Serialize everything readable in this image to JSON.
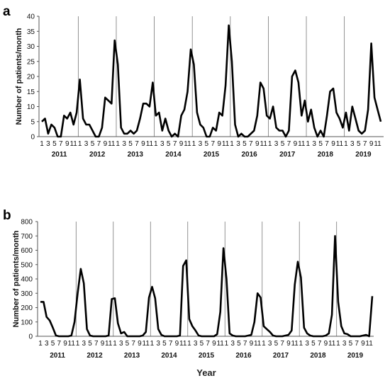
{
  "chart_data": [
    {
      "type": "line",
      "panel_label": "a",
      "ylabel": "Number of patients/month",
      "xlabel": "",
      "ylim": [
        0,
        40
      ],
      "yticks": [
        0,
        5,
        10,
        15,
        20,
        25,
        30,
        35,
        40
      ],
      "month_tick_labels": [
        "1",
        "3",
        "5",
        "7",
        "9",
        "11"
      ],
      "years": [
        "2011",
        "2012",
        "2013",
        "2014",
        "2015",
        "2016",
        "2017",
        "2018",
        "2019"
      ],
      "series": [
        {
          "values": [
            5,
            6,
            1,
            4,
            3,
            0,
            0,
            7,
            6,
            8,
            4,
            8,
            19,
            6,
            4,
            4,
            2,
            0,
            0,
            3,
            13,
            12,
            11,
            32,
            24,
            3,
            1,
            1,
            2,
            1,
            2,
            6,
            11,
            11,
            10,
            18,
            7,
            8,
            2,
            6,
            2,
            0,
            1,
            0,
            7,
            9,
            15,
            29,
            24,
            8,
            4,
            3,
            0,
            0,
            3,
            2,
            8,
            7,
            17,
            37,
            25,
            4,
            0,
            1,
            0,
            0,
            1,
            2,
            7,
            18,
            16,
            7,
            6,
            10,
            3,
            2,
            2,
            0,
            2,
            20,
            22,
            18,
            7,
            12,
            5,
            9,
            3,
            0,
            2,
            0,
            7,
            15,
            16,
            8,
            6,
            3,
            8,
            2,
            10,
            6,
            2,
            1,
            2,
            9,
            31,
            13,
            9,
            5
          ]
        }
      ]
    },
    {
      "type": "line",
      "panel_label": "b",
      "ylabel": "Number of patients/month",
      "xlabel": "Year",
      "ylim": [
        0,
        800
      ],
      "yticks": [
        0,
        100,
        200,
        300,
        400,
        500,
        600,
        700,
        800
      ],
      "month_tick_labels": [
        "1",
        "3",
        "5",
        "7",
        "9",
        "11"
      ],
      "years": [
        "2011",
        "2012",
        "2013",
        "2014",
        "2015",
        "2016",
        "2017",
        "2018",
        "2019"
      ],
      "series": [
        {
          "values": [
            240,
            240,
            135,
            110,
            60,
            5,
            0,
            0,
            0,
            0,
            5,
            100,
            300,
            470,
            370,
            50,
            5,
            0,
            0,
            0,
            0,
            0,
            5,
            260,
            265,
            90,
            20,
            30,
            0,
            0,
            0,
            0,
            0,
            5,
            30,
            270,
            345,
            265,
            50,
            10,
            0,
            0,
            0,
            0,
            0,
            5,
            490,
            530,
            120,
            70,
            40,
            5,
            0,
            0,
            0,
            0,
            0,
            15,
            170,
            615,
            400,
            20,
            5,
            0,
            0,
            0,
            0,
            5,
            10,
            100,
            300,
            270,
            70,
            50,
            30,
            5,
            0,
            0,
            0,
            5,
            10,
            40,
            360,
            520,
            410,
            60,
            20,
            5,
            0,
            0,
            0,
            0,
            5,
            20,
            150,
            700,
            240,
            70,
            20,
            15,
            0,
            0,
            0,
            0,
            5,
            10,
            0,
            280
          ]
        }
      ]
    }
  ]
}
